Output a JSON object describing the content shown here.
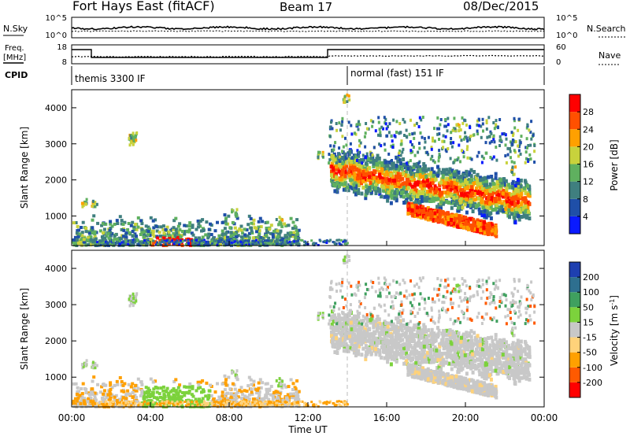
{
  "header": {
    "title": "Fort Hays East (fitACF)",
    "beam": "Beam 17",
    "date": "08/Dec/2015"
  },
  "side_labels": {
    "nsky": "N.Sky",
    "nsearch": "N.Search",
    "freq": "Freq.",
    "mhz": "[MHz]",
    "nave": "Nave",
    "cpid": "CPID"
  },
  "noise_axis": {
    "left_ticks": [
      "10^5",
      "10^0"
    ],
    "right_ticks": [
      "10^5",
      "10^0"
    ]
  },
  "freq_axis": {
    "left_ticks": [
      "18",
      "8"
    ],
    "right_ticks": [
      "60",
      "0"
    ]
  },
  "cpid": {
    "segments": [
      {
        "label": "themis 3300 IF",
        "start_hour": 0
      },
      {
        "label": "normal (fast) 151 IF",
        "start_hour": 14
      }
    ]
  },
  "colors": {
    "power": [
      "#0a1aff",
      "#1f4fa8",
      "#3f7f7f",
      "#5fb05f",
      "#c8d23c",
      "#ffa000",
      "#ff5000",
      "#ff0000"
    ],
    "velocity": [
      "#ff0000",
      "#ff5a00",
      "#ffa000",
      "#ffd27a",
      "#c8c8c8",
      "#7cd23c",
      "#3fa05f",
      "#2e6f8f",
      "#1e3fb0"
    ]
  },
  "chart_data": [
    {
      "type": "heatmap",
      "name": "power",
      "ylabel": "Slant Range [km]",
      "yticks": [
        "1000",
        "2000",
        "3000",
        "4000"
      ],
      "xticks": [
        "00:00",
        "04:00",
        "08:00",
        "12:00",
        "16:00",
        "20:00",
        "00:00"
      ],
      "ylim": [
        180,
        4500
      ],
      "xlim_hours": [
        0,
        24
      ],
      "colorbar": {
        "label": "Power [dB]",
        "ticks": [
          "4",
          "8",
          "12",
          "16",
          "20",
          "24",
          "28"
        ],
        "range": [
          0,
          32
        ]
      }
    },
    {
      "type": "heatmap",
      "name": "velocity",
      "ylabel": "Slant Range [km]",
      "yticks": [
        "1000",
        "2000",
        "3000",
        "4000"
      ],
      "xticks": [
        "00:00",
        "04:00",
        "08:00",
        "12:00",
        "16:00",
        "20:00",
        "00:00"
      ],
      "xlabel": "Time UT",
      "ylim": [
        180,
        4500
      ],
      "xlim_hours": [
        0,
        24
      ],
      "colorbar": {
        "label": "Velocity [m s^-1]",
        "ticks": [
          "200",
          "100",
          "50",
          "15",
          "-15",
          "-50",
          "-100",
          "-200"
        ]
      }
    }
  ]
}
